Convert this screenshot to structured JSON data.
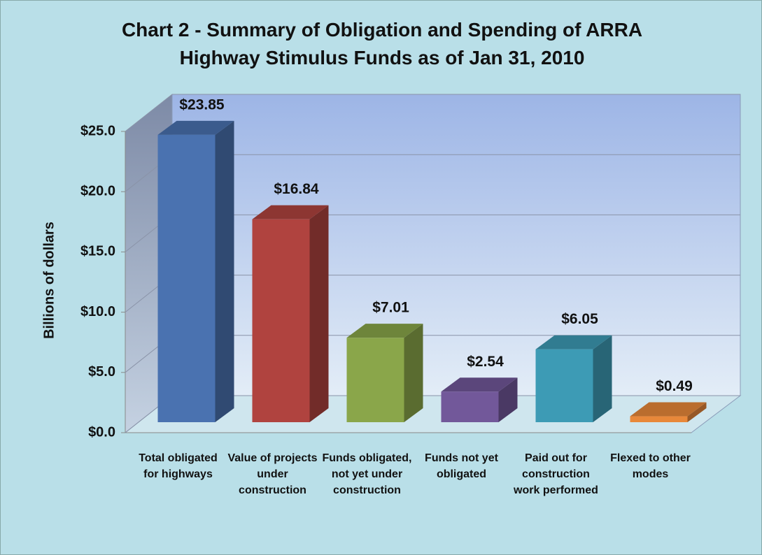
{
  "chart_data": {
    "type": "bar3d",
    "title": "Chart 2 - Summary of Obligation and Spending of ARRA Highway Stimulus Funds as of Jan 31, 2010",
    "y_label": "Billions of dollars",
    "categories": [
      "Total obligated for highways",
      "Value of projects under construction",
      "Funds obligated, not yet under construction",
      "Funds not yet obligated",
      "Paid out for construction work performed",
      "Flexed to other modes"
    ],
    "values": [
      23.85,
      16.84,
      7.01,
      2.54,
      6.05,
      0.49
    ],
    "value_labels": [
      "$23.85",
      "$16.84",
      "$7.01",
      "$2.54",
      "$6.05",
      "$0.49"
    ],
    "colors": [
      "#4a72b0",
      "#b0433f",
      "#8aa64a",
      "#72589a",
      "#3d9bb5",
      "#e8883a"
    ],
    "ylim": [
      0,
      25
    ],
    "yticks": [
      {
        "value": 0,
        "label": "$0.0"
      },
      {
        "value": 5,
        "label": "$5.0"
      },
      {
        "value": 10,
        "label": "$10.0"
      },
      {
        "value": 15,
        "label": "$15.0"
      },
      {
        "value": 20,
        "label": "$20.0"
      },
      {
        "value": 25,
        "label": "$25.0"
      }
    ],
    "grid": true
  }
}
